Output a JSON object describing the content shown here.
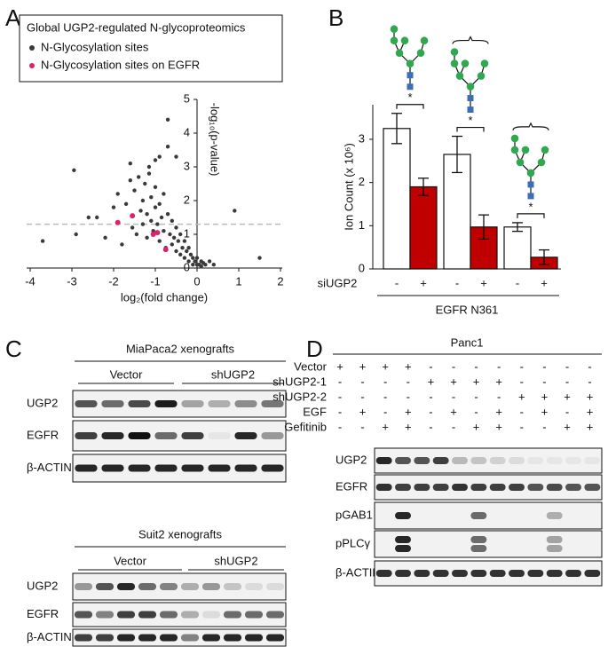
{
  "panel_labels": [
    "A",
    "B",
    "C",
    "D"
  ],
  "chart_data": [
    {
      "type": "scatter",
      "legend_title": "Global UGP2-regulated N-glycoproteomics",
      "xlabel": "log₂(fold change)",
      "ylabel": "-log₁₀(p-value)",
      "xlim": [
        -4,
        2
      ],
      "xticks": [
        -4,
        -3,
        -2,
        -1,
        0,
        1,
        2
      ],
      "ylim": [
        0,
        5
      ],
      "yticks": [
        0,
        1,
        2,
        3,
        4,
        5
      ],
      "threshold": 1.3,
      "series": [
        {
          "name": "N-Glycosylation sites",
          "color": "#3a3a3a",
          "x": [
            -3.7,
            -2.95,
            -2.9,
            -2.4,
            -2.2,
            -2.0,
            -1.9,
            -1.8,
            -1.7,
            -1.6,
            -1.55,
            -1.5,
            -1.45,
            -1.4,
            -1.35,
            -1.3,
            -1.3,
            -1.25,
            -1.2,
            -1.2,
            -1.15,
            -1.1,
            -1.1,
            -1.05,
            -1.0,
            -1.0,
            -0.95,
            -0.9,
            -0.9,
            -0.85,
            -0.8,
            -0.8,
            -0.75,
            -0.7,
            -0.7,
            -0.65,
            -0.6,
            -0.6,
            -0.55,
            -0.5,
            -0.5,
            -0.45,
            -0.4,
            -0.4,
            -0.35,
            -0.3,
            -0.3,
            -0.25,
            -0.2,
            -0.2,
            -0.15,
            -0.1,
            -0.1,
            -0.05,
            0.0,
            0.0,
            0.05,
            0.1,
            0.1,
            0.15,
            0.2,
            0.3,
            0.4,
            0.9,
            1.5,
            -0.7,
            -0.9,
            -1.6,
            -1.15,
            -0.5,
            -2.6,
            -1.0
          ],
          "values": [
            0.8,
            2.9,
            1.0,
            1.5,
            0.9,
            1.8,
            2.2,
            0.7,
            1.9,
            2.6,
            1.2,
            2.3,
            1.0,
            2.7,
            1.7,
            1.3,
            2.0,
            2.5,
            0.9,
            1.6,
            2.8,
            1.4,
            2.1,
            1.1,
            1.8,
            2.4,
            1.3,
            0.8,
            1.9,
            1.5,
            1.1,
            2.2,
            0.6,
            1.6,
            4.4,
            1.0,
            0.7,
            1.4,
            0.9,
            0.5,
            1.2,
            0.8,
            0.4,
            1.0,
            0.6,
            0.3,
            0.8,
            0.5,
            0.2,
            0.6,
            0.4,
            0.1,
            0.3,
            0.2,
            0.1,
            0.3,
            0.1,
            0.2,
            0.05,
            0.15,
            0.1,
            0.2,
            0.1,
            1.7,
            0.3,
            3.6,
            3.3,
            3.1,
            3.0,
            3.3,
            1.5,
            3.2
          ]
        },
        {
          "name": "N-Glycosylation sites on EGFR",
          "color": "#d6246e",
          "x": [
            -1.9,
            -1.55,
            -1.05,
            -0.95,
            -0.75
          ],
          "values": [
            1.35,
            1.55,
            1.0,
            1.05,
            0.55
          ]
        }
      ]
    },
    {
      "type": "bar",
      "ylabel": "Ion Count (x 10⁶)",
      "row_label": "siUGP2",
      "group_label": "EGFR N361",
      "categories": [
        "-",
        "+",
        "-",
        "+",
        "-",
        "+"
      ],
      "values": [
        3.25,
        1.9,
        2.65,
        0.97,
        0.97,
        0.27
      ],
      "errors": [
        0.35,
        0.2,
        0.42,
        0.28,
        0.1,
        0.17
      ],
      "colors": [
        "#ffffff",
        "#c00000",
        "#ffffff",
        "#c00000",
        "#ffffff",
        "#c00000"
      ],
      "significance": [
        "*",
        "*",
        "*"
      ],
      "ylim": [
        0,
        3.8
      ],
      "yticks": [
        0,
        1,
        2,
        3
      ]
    }
  ],
  "blots_c": [
    {
      "title": "MiaPaca2 xenografts",
      "groups": [
        "Vector",
        "shUGP2"
      ],
      "rows": [
        "UGP2",
        "EGFR",
        "β-ACTIN"
      ]
    },
    {
      "title": "Suit2 xenografts",
      "groups": [
        "Vector",
        "shUGP2"
      ],
      "rows": [
        "UGP2",
        "EGFR",
        "β-ACTIN"
      ]
    }
  ],
  "blot_d": {
    "title": "Panc1",
    "conditions": [
      {
        "label": "Vector",
        "signs": [
          "+",
          "+",
          "+",
          "+",
          "-",
          "-",
          "-",
          "-",
          "-",
          "-",
          "-",
          "-"
        ]
      },
      {
        "label": "shUGP2-1",
        "signs": [
          "-",
          "-",
          "-",
          "-",
          "+",
          "+",
          "+",
          "+",
          "-",
          "-",
          "-",
          "-"
        ]
      },
      {
        "label": "shUGP2-2",
        "signs": [
          "-",
          "-",
          "-",
          "-",
          "-",
          "-",
          "-",
          "-",
          "+",
          "+",
          "+",
          "+"
        ]
      },
      {
        "label": "EGF",
        "signs": [
          "-",
          "+",
          "-",
          "+",
          "-",
          "+",
          "-",
          "+",
          "-",
          "+",
          "-",
          "+"
        ]
      },
      {
        "label": "Gefitinib",
        "signs": [
          "-",
          "-",
          "+",
          "+",
          "-",
          "-",
          "+",
          "+",
          "-",
          "-",
          "+",
          "+"
        ]
      }
    ],
    "rows": [
      "UGP2",
      "EGFR",
      "pGAB1",
      "pPLCγ",
      "β-ACTIN"
    ]
  }
}
